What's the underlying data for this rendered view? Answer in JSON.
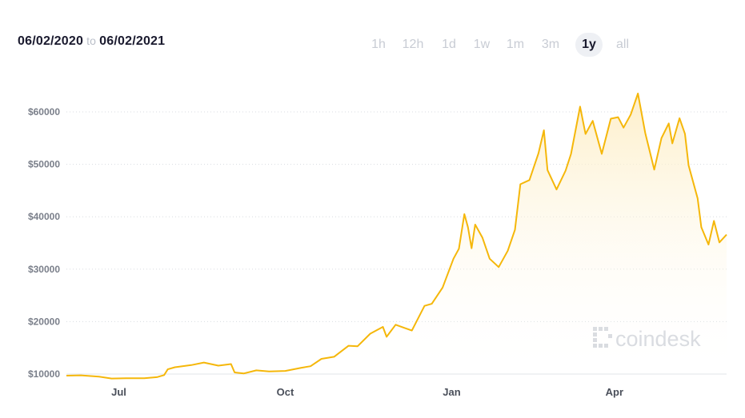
{
  "header": {
    "date_from": "06/02/2020",
    "to_label": "to",
    "date_to": "06/02/2021"
  },
  "timeframes": [
    {
      "label": "1h",
      "active": false
    },
    {
      "label": "12h",
      "active": false
    },
    {
      "label": "1d",
      "active": false
    },
    {
      "label": "1w",
      "active": false
    },
    {
      "label": "1m",
      "active": false
    },
    {
      "label": "3m",
      "active": false
    },
    {
      "label": "1y",
      "active": true
    },
    {
      "label": "all",
      "active": false
    }
  ],
  "watermark": {
    "text": "coindesk",
    "icon": "coindesk-logo-icon"
  },
  "colors": {
    "line": "#f5b70a",
    "fill_top": "#fdecc0",
    "grid": "#d8dbe0",
    "axis": "#e2e4e8"
  },
  "chart_data": {
    "type": "area",
    "ylim": [
      10000,
      65000
    ],
    "yticks": [
      10000,
      20000,
      30000,
      40000,
      50000,
      60000
    ],
    "ytick_labels": [
      "$10000",
      "$20000",
      "$30000",
      "$40000",
      "$50000",
      "$60000"
    ],
    "xticks": [
      {
        "label": "Jul",
        "x": "2020-07-01"
      },
      {
        "label": "Oct",
        "x": "2020-10-01"
      },
      {
        "label": "Jan",
        "x": "2021-01-01"
      },
      {
        "label": "Apr",
        "x": "2021-04-01"
      }
    ],
    "x_range": [
      "2020-06-02",
      "2021-06-02"
    ],
    "grid": true,
    "series": [
      {
        "values": [
          [
            "2020-06-02",
            9700
          ],
          [
            "2020-06-10",
            9750
          ],
          [
            "2020-06-20",
            9500
          ],
          [
            "2020-06-27",
            9150
          ],
          [
            "2020-07-05",
            9200
          ],
          [
            "2020-07-15",
            9200
          ],
          [
            "2020-07-22",
            9400
          ],
          [
            "2020-07-26",
            9800
          ],
          [
            "2020-07-28",
            10900
          ],
          [
            "2020-08-01",
            11300
          ],
          [
            "2020-08-10",
            11700
          ],
          [
            "2020-08-17",
            12200
          ],
          [
            "2020-08-25",
            11600
          ],
          [
            "2020-09-01",
            11900
          ],
          [
            "2020-09-03",
            10300
          ],
          [
            "2020-09-08",
            10100
          ],
          [
            "2020-09-15",
            10700
          ],
          [
            "2020-09-22",
            10500
          ],
          [
            "2020-10-01",
            10600
          ],
          [
            "2020-10-10",
            11200
          ],
          [
            "2020-10-15",
            11500
          ],
          [
            "2020-10-21",
            12900
          ],
          [
            "2020-10-28",
            13300
          ],
          [
            "2020-11-05",
            15400
          ],
          [
            "2020-11-10",
            15300
          ],
          [
            "2020-11-17",
            17700
          ],
          [
            "2020-11-24",
            19000
          ],
          [
            "2020-11-26",
            17100
          ],
          [
            "2020-12-01",
            19400
          ],
          [
            "2020-12-10",
            18300
          ],
          [
            "2020-12-17",
            23000
          ],
          [
            "2020-12-21",
            23400
          ],
          [
            "2020-12-27",
            26500
          ],
          [
            "2021-01-02",
            32000
          ],
          [
            "2021-01-05",
            33900
          ],
          [
            "2021-01-08",
            40500
          ],
          [
            "2021-01-10",
            38000
          ],
          [
            "2021-01-12",
            34000
          ],
          [
            "2021-01-14",
            38500
          ],
          [
            "2021-01-18",
            36000
          ],
          [
            "2021-01-22",
            32000
          ],
          [
            "2021-01-27",
            30400
          ],
          [
            "2021-02-01",
            33500
          ],
          [
            "2021-02-05",
            37500
          ],
          [
            "2021-02-08",
            46200
          ],
          [
            "2021-02-13",
            47000
          ],
          [
            "2021-02-18",
            52100
          ],
          [
            "2021-02-21",
            56500
          ],
          [
            "2021-02-23",
            48900
          ],
          [
            "2021-02-28",
            45200
          ],
          [
            "2021-03-05",
            48800
          ],
          [
            "2021-03-08",
            52000
          ],
          [
            "2021-03-13",
            61000
          ],
          [
            "2021-03-16",
            55800
          ],
          [
            "2021-03-20",
            58300
          ],
          [
            "2021-03-25",
            52000
          ],
          [
            "2021-03-30",
            58700
          ],
          [
            "2021-04-03",
            59000
          ],
          [
            "2021-04-06",
            57000
          ],
          [
            "2021-04-10",
            59500
          ],
          [
            "2021-04-14",
            63500
          ],
          [
            "2021-04-18",
            56000
          ],
          [
            "2021-04-23",
            49000
          ],
          [
            "2021-04-27",
            55000
          ],
          [
            "2021-05-01",
            57800
          ],
          [
            "2021-05-03",
            54000
          ],
          [
            "2021-05-07",
            58800
          ],
          [
            "2021-05-10",
            55800
          ],
          [
            "2021-05-12",
            49800
          ],
          [
            "2021-05-17",
            43500
          ],
          [
            "2021-05-19",
            38000
          ],
          [
            "2021-05-23",
            34700
          ],
          [
            "2021-05-26",
            39200
          ],
          [
            "2021-05-29",
            35100
          ],
          [
            "2021-06-02",
            36600
          ]
        ]
      }
    ]
  }
}
